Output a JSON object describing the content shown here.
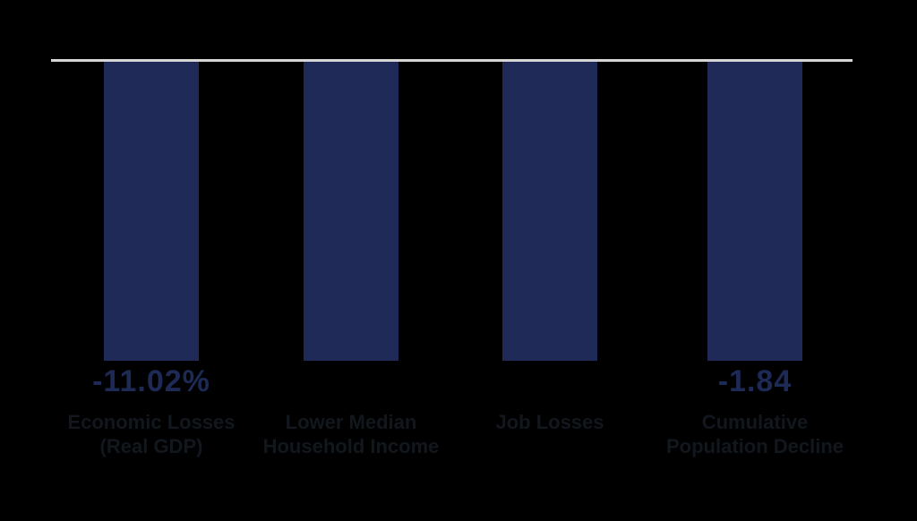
{
  "page": {
    "background_color": "#000000",
    "title": ""
  },
  "chart_data": {
    "type": "bar",
    "title": "",
    "xlabel": "",
    "ylabel": "",
    "legend": "none",
    "gridlines": false,
    "orientation": "vertical",
    "direction": "bars-extend-downward-from-top-baseline",
    "bars_drawn_equal_height": true,
    "baseline_color": "#d6d6d6",
    "bar_color": "#1f2a58",
    "value_label_color": "#1e2a56",
    "category_label_color": "#12171d",
    "categories": [
      "Economic Losses (Real GDP)",
      "Lower Median Household Income",
      "Job Losses",
      "Cumulative Population Decline"
    ],
    "value_labels": [
      "-11.02%",
      "",
      "",
      "-1.84"
    ],
    "values_labeled": {
      "Economic Losses (Real GDP)": -11.02,
      "Cumulative Population Decline": -1.84
    },
    "bars": [
      {
        "label_line1": "Economic Losses",
        "label_line2": "(Real GDP)",
        "value_label": "-11.02%"
      },
      {
        "label_line1": "Lower Median",
        "label_line2": "Household Income",
        "value_label": ""
      },
      {
        "label_line1": "Job Losses",
        "label_line2": "",
        "value_label": ""
      },
      {
        "label_line1": "Cumulative",
        "label_line2": "Population Decline",
        "value_label": "-1.84"
      }
    ]
  }
}
